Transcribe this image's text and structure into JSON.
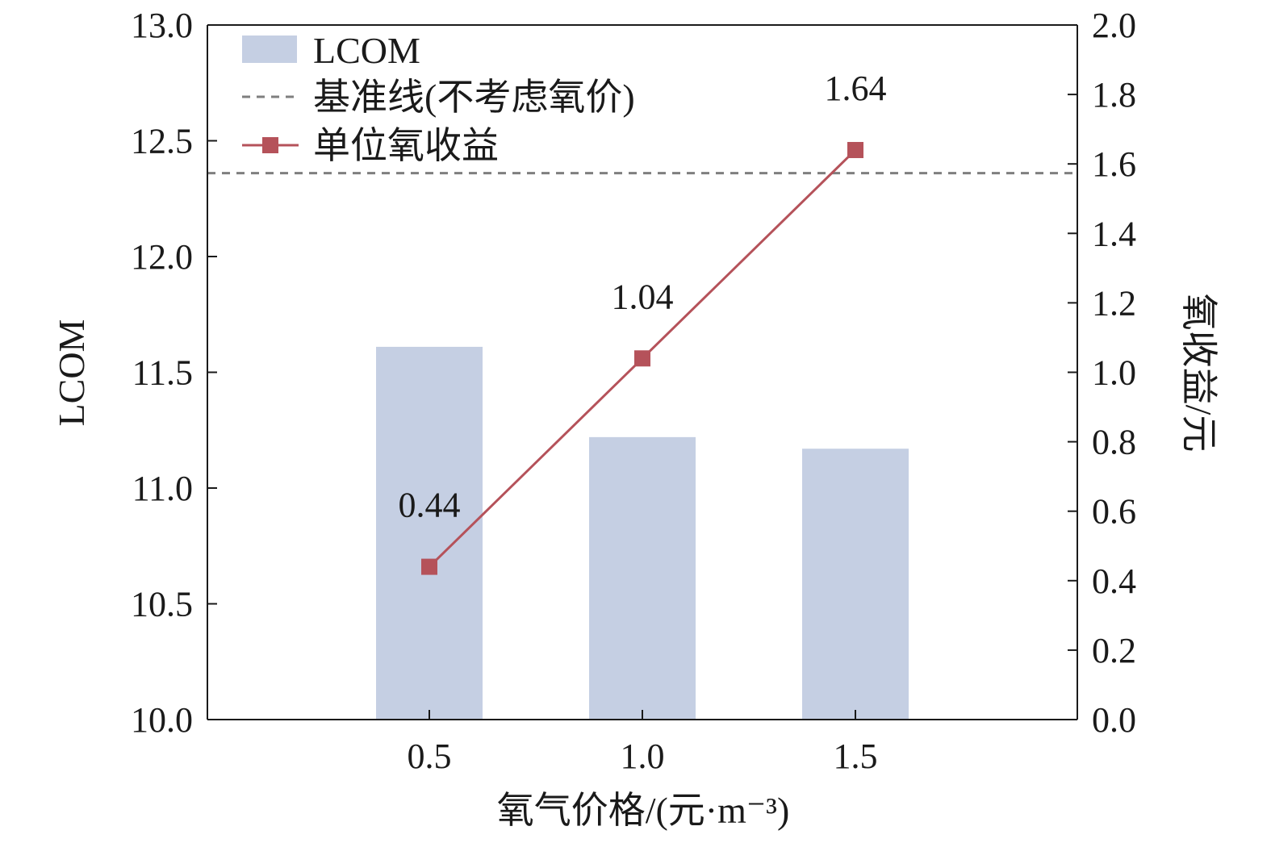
{
  "chart_data": {
    "type": "bar",
    "xlabel": "氧气价格/(元·m⁻³)",
    "ylabel": "LCOM",
    "y2label": "氧收益/元",
    "categories": [
      "0.5",
      "1.0",
      "1.5"
    ],
    "ylim": [
      10.0,
      13.0
    ],
    "y2lim": [
      0.0,
      2.0
    ],
    "yticks": [
      "10.0",
      "10.5",
      "11.0",
      "11.5",
      "12.0",
      "12.5",
      "13.0"
    ],
    "y2ticks": [
      "0.0",
      "0.2",
      "0.4",
      "0.6",
      "0.8",
      "1.0",
      "1.2",
      "1.4",
      "1.6",
      "1.8",
      "2.0"
    ],
    "grid": false,
    "legend_position": "top-left",
    "series": [
      {
        "name": "LCOM",
        "kind": "bar",
        "axis": "left",
        "values": [
          11.61,
          11.22,
          11.17
        ],
        "color": "#c5cfe3"
      },
      {
        "name": "单位氧收益",
        "kind": "line",
        "axis": "right",
        "values": [
          0.44,
          1.04,
          1.64
        ],
        "labels": [
          "0.44",
          "1.04",
          "1.64"
        ],
        "color": "#b5525a"
      }
    ],
    "baseline": {
      "name": "基准线(不考虑氧价)",
      "axis": "left",
      "value": 12.36,
      "color": "#7f7f7f",
      "style": "dashed"
    }
  }
}
